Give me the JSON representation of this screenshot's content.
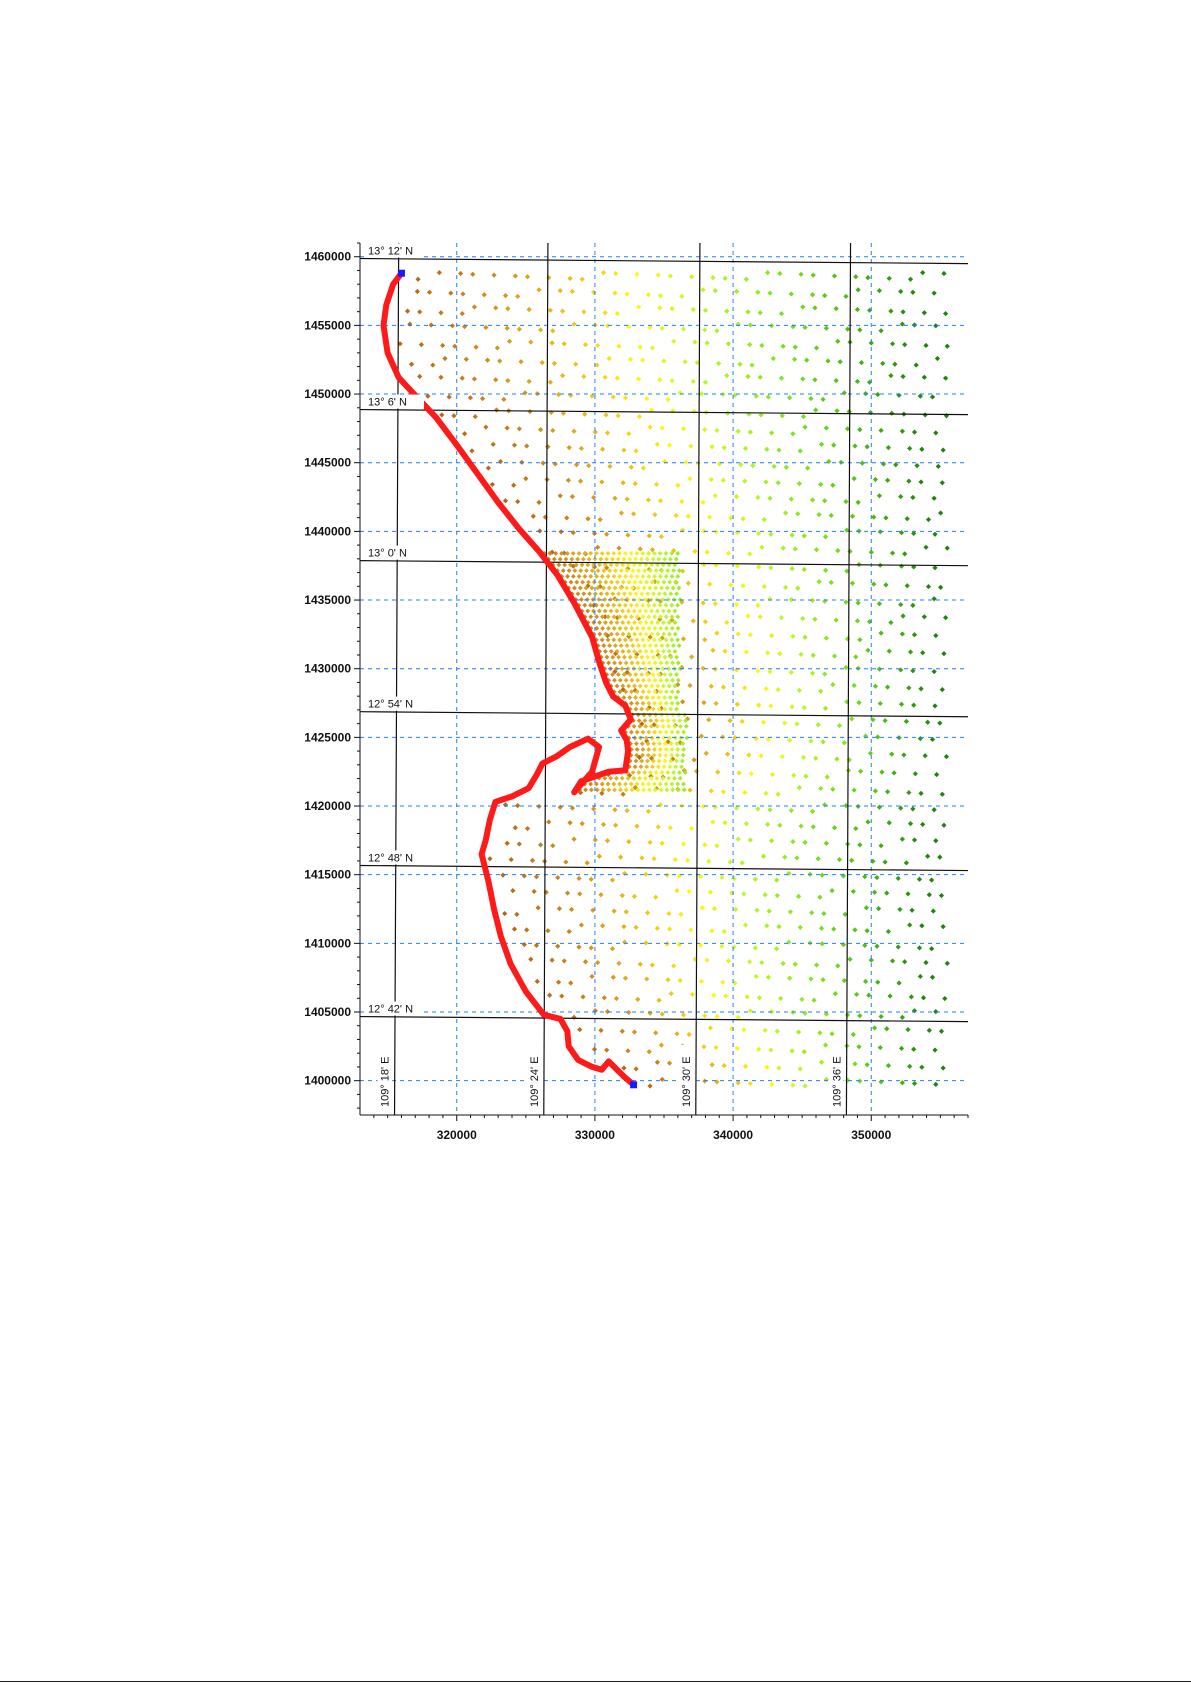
{
  "map": {
    "projection_x_ticks": [
      "320000",
      "330000",
      "340000",
      "350000"
    ],
    "projection_x_values": [
      320000,
      330000,
      340000,
      350000
    ],
    "projection_y_ticks": [
      "1460000",
      "1455000",
      "1450000",
      "1445000",
      "1440000",
      "1435000",
      "1430000",
      "1425000",
      "1420000",
      "1415000",
      "1410000",
      "1405000",
      "1400000"
    ],
    "projection_y_values": [
      1460000,
      1455000,
      1450000,
      1445000,
      1440000,
      1435000,
      1430000,
      1425000,
      1420000,
      1415000,
      1410000,
      1405000,
      1400000
    ],
    "x_range": [
      313000,
      357000
    ],
    "y_range": [
      1397500,
      1461000
    ],
    "latitude_labels": [
      "13° 12' N",
      "13° 6' N",
      "13° 0' N",
      "12° 54' N",
      "12° 48' N",
      "12° 42' N"
    ],
    "latitude_northings": [
      1459800,
      1448800,
      1437800,
      1426800,
      1415600,
      1404600
    ],
    "longitude_labels": [
      "109° 18' E",
      "109° 24' E",
      "109° 30' E",
      "109° 36' E"
    ],
    "longitude_eastings": [
      315500,
      326300,
      337300,
      348200
    ],
    "projected_grid": "dashed blue",
    "geographic_graticule": "solid black",
    "coastline_color": "#ff1a1a",
    "boundary_marker_color": "#1a1aff",
    "coastline": [
      [
        316000,
        1458800
      ],
      [
        315400,
        1458000
      ],
      [
        314900,
        1456500
      ],
      [
        314700,
        1455000
      ],
      [
        315000,
        1453000
      ],
      [
        315800,
        1451200
      ],
      [
        317000,
        1449900
      ],
      [
        318500,
        1448300
      ],
      [
        320000,
        1446300
      ],
      [
        321500,
        1444200
      ],
      [
        323000,
        1442100
      ],
      [
        324500,
        1440200
      ],
      [
        326000,
        1438500
      ],
      [
        327300,
        1436800
      ],
      [
        328500,
        1434800
      ],
      [
        329800,
        1432300
      ],
      [
        330300,
        1430500
      ],
      [
        330800,
        1429000
      ],
      [
        331300,
        1428000
      ],
      [
        332200,
        1427300
      ],
      [
        332600,
        1426300
      ],
      [
        331900,
        1425500
      ],
      [
        332300,
        1424800
      ],
      [
        332400,
        1424000
      ],
      [
        332200,
        1422600
      ],
      [
        331000,
        1422500
      ],
      [
        329000,
        1421800
      ],
      [
        328500,
        1421000
      ],
      [
        329800,
        1422500
      ],
      [
        330300,
        1424300
      ],
      [
        329500,
        1424900
      ],
      [
        328200,
        1424300
      ],
      [
        327200,
        1423600
      ],
      [
        326200,
        1423100
      ],
      [
        325800,
        1422300
      ],
      [
        325200,
        1421300
      ],
      [
        324000,
        1420700
      ],
      [
        322800,
        1420300
      ],
      [
        322400,
        1419000
      ],
      [
        322100,
        1417500
      ],
      [
        321800,
        1416500
      ],
      [
        322300,
        1414500
      ],
      [
        322700,
        1412500
      ],
      [
        323200,
        1410500
      ],
      [
        323900,
        1408500
      ],
      [
        325000,
        1406500
      ],
      [
        326300,
        1404800
      ],
      [
        327500,
        1404500
      ],
      [
        328000,
        1403600
      ],
      [
        328100,
        1402500
      ],
      [
        328800,
        1401500
      ],
      [
        329800,
        1401000
      ],
      [
        330500,
        1400800
      ],
      [
        331000,
        1401400
      ],
      [
        331500,
        1400900
      ],
      [
        332100,
        1400300
      ],
      [
        332800,
        1399700
      ]
    ]
  }
}
